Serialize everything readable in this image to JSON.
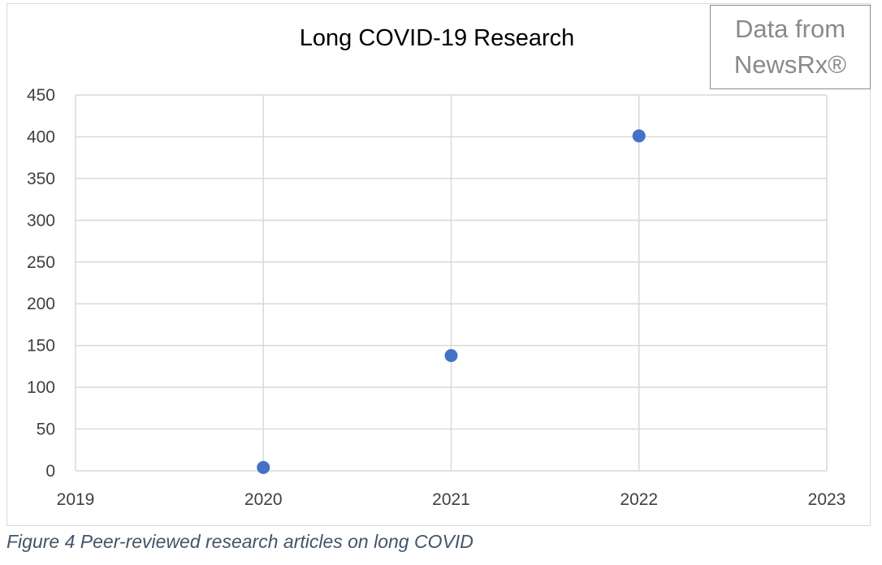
{
  "chart_data": {
    "type": "scatter",
    "title": "Long COVID-19 Research",
    "x": [
      2020,
      2021,
      2022
    ],
    "y": [
      4,
      138,
      401
    ],
    "xlim": [
      2019,
      2023
    ],
    "ylim": [
      0,
      450
    ],
    "x_ticks": [
      "2019",
      "2020",
      "2021",
      "2022",
      "2023"
    ],
    "y_ticks": [
      "0",
      "50",
      "100",
      "150",
      "200",
      "250",
      "300",
      "350",
      "400",
      "450"
    ],
    "grid": true,
    "marker_color": "#4472c4",
    "gridline_color": "#d9d9d9"
  },
  "source_box": {
    "line1": "Data from",
    "line2": "NewsRx®"
  },
  "caption": "Figure 4 Peer-reviewed research articles on long COVID"
}
